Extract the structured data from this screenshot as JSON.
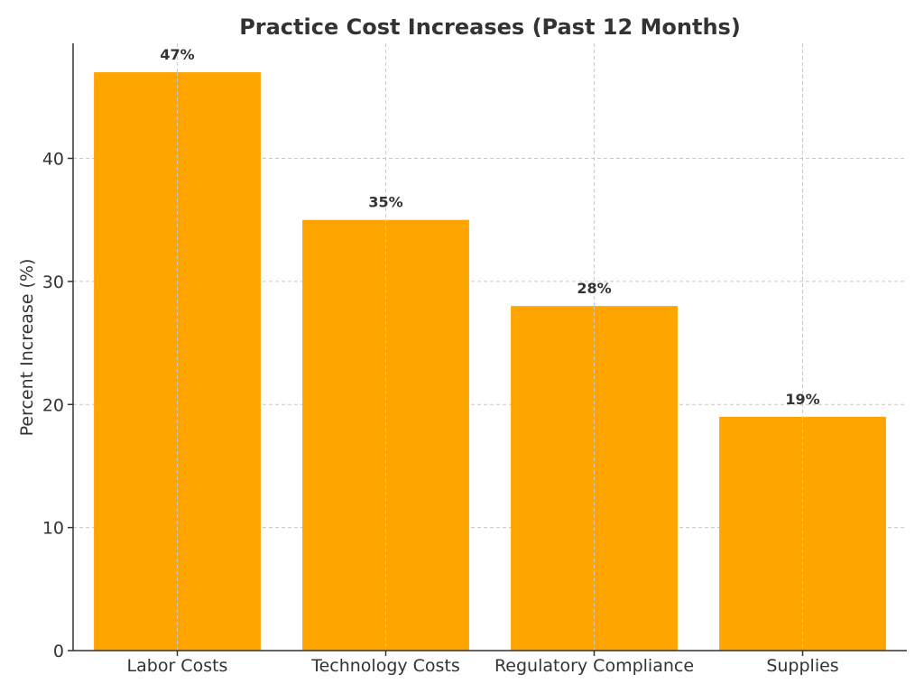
{
  "chart_data": {
    "type": "bar",
    "title": "Practice Cost Increases (Past 12 Months)",
    "xlabel": "",
    "ylabel": "Percent Increase (%)",
    "categories": [
      "Labor Costs",
      "Technology Costs",
      "Regulatory Compliance",
      "Supplies"
    ],
    "values": [
      47,
      35,
      28,
      19
    ],
    "value_labels": [
      "47%",
      "35%",
      "28%",
      "19%"
    ],
    "ylim": [
      0,
      49.35
    ],
    "yticks": [
      0,
      10,
      20,
      30,
      40
    ],
    "grid": true,
    "bar_color": "#FFA500",
    "grid_color": "#c8c8c8",
    "text_color": "#333333"
  }
}
